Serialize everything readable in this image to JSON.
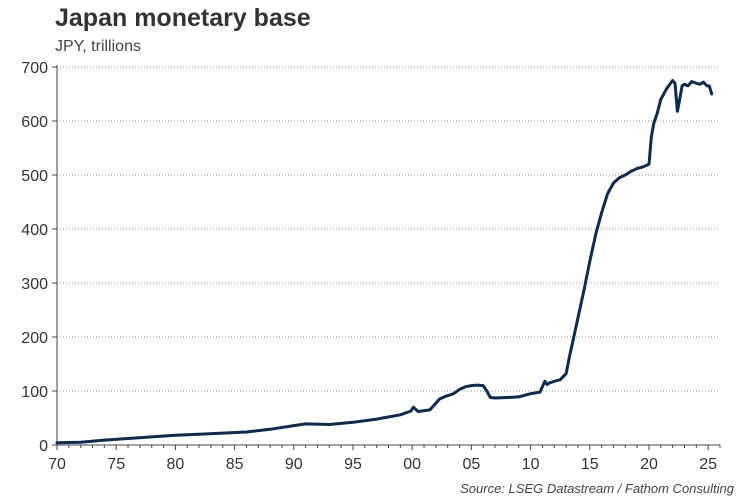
{
  "chart_data": {
    "type": "line",
    "title": "Japan monetary base",
    "subtitle": "JPY, trillions",
    "source": "Source: LSEG Datastream / Fathom Consulting",
    "xlabel": "",
    "ylabel": "",
    "xlim": [
      1970,
      2026
    ],
    "ylim": [
      0,
      700
    ],
    "y_ticks": [
      0,
      100,
      200,
      300,
      400,
      500,
      600,
      700
    ],
    "x_ticks": [
      {
        "value": 1970,
        "label": "70"
      },
      {
        "value": 1975,
        "label": "75"
      },
      {
        "value": 1980,
        "label": "80"
      },
      {
        "value": 1985,
        "label": "85"
      },
      {
        "value": 1990,
        "label": "90"
      },
      {
        "value": 1995,
        "label": "95"
      },
      {
        "value": 2000,
        "label": "00"
      },
      {
        "value": 2005,
        "label": "05"
      },
      {
        "value": 2010,
        "label": "10"
      },
      {
        "value": 2015,
        "label": "15"
      },
      {
        "value": 2020,
        "label": "20"
      },
      {
        "value": 2025,
        "label": "25"
      }
    ],
    "grid": true,
    "series": [
      {
        "name": "Japan monetary base",
        "color": "#0d2b52",
        "x": [
          1970,
          1972,
          1974,
          1976,
          1978,
          1980,
          1982,
          1984,
          1986,
          1988,
          1990,
          1991,
          1993,
          1995,
          1997,
          1999,
          1999.9,
          2000.1,
          2000.5,
          2001.5,
          2002.3,
          2002.8,
          2003.5,
          2004,
          2004.5,
          2005,
          2005.5,
          2006,
          2006.3,
          2006.6,
          2007,
          2008,
          2009,
          2010,
          2010.8,
          2011.2,
          2011.4,
          2011.6,
          2012,
          2012.5,
          2013,
          2013.3,
          2013.6,
          2014,
          2014.5,
          2015,
          2015.5,
          2016,
          2016.5,
          2017,
          2017.5,
          2018,
          2018.5,
          2019,
          2019.5,
          2020,
          2020.2,
          2020.4,
          2020.7,
          2021,
          2021.5,
          2022,
          2022.2,
          2022.4,
          2022.6,
          2022.8,
          2023,
          2023.3,
          2023.6,
          2024,
          2024.3,
          2024.6,
          2024.9,
          2025.1,
          2025.3
        ],
        "values": [
          4,
          5,
          9,
          12,
          15,
          18,
          20,
          22,
          24,
          29,
          36,
          39,
          38,
          42,
          48,
          56,
          63,
          70,
          62,
          65,
          85,
          90,
          95,
          103,
          108,
          110,
          111,
          110,
          100,
          88,
          87,
          88,
          89,
          95,
          98,
          118,
          112,
          115,
          118,
          121,
          132,
          165,
          195,
          235,
          285,
          340,
          390,
          430,
          465,
          485,
          495,
          500,
          507,
          512,
          515,
          520,
          570,
          595,
          615,
          640,
          660,
          675,
          670,
          618,
          640,
          665,
          668,
          665,
          673,
          670,
          668,
          672,
          665,
          665,
          650
        ]
      }
    ]
  }
}
